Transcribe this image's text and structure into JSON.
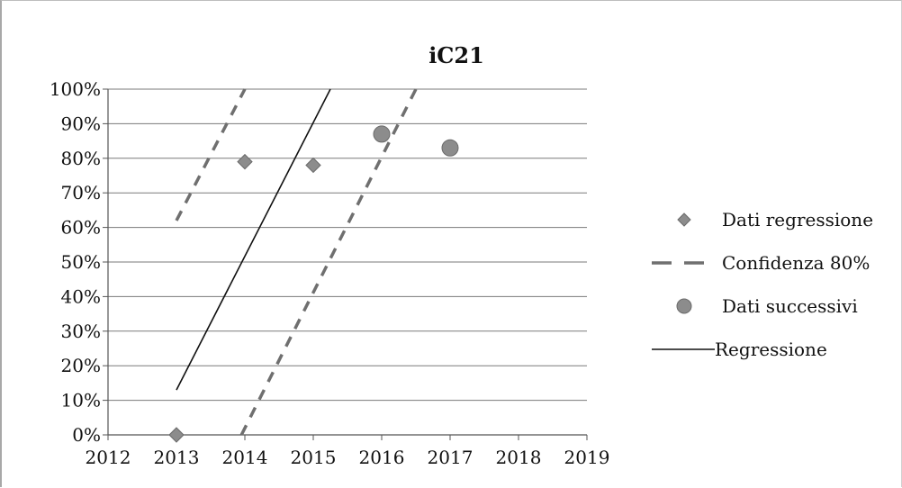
{
  "chart_data": {
    "type": "scatter",
    "title": "iC21",
    "xlabel": "",
    "ylabel": "",
    "xlim": [
      2012,
      2019
    ],
    "ylim": [
      0,
      1
    ],
    "x_ticks": [
      "2012",
      "2013",
      "2014",
      "2015",
      "2016",
      "2017",
      "2018",
      "2019"
    ],
    "y_ticks": [
      "0%",
      "10%",
      "20%",
      "30%",
      "40%",
      "50%",
      "60%",
      "70%",
      "80%",
      "90%",
      "100%"
    ],
    "grid": true,
    "legend_position": "right",
    "series": [
      {
        "name": "Dati regressione",
        "kind": "diamond",
        "color": "#8c8c8c",
        "points": [
          {
            "x": 2013,
            "y": 0.0
          },
          {
            "x": 2014,
            "y": 0.79
          },
          {
            "x": 2015,
            "y": 0.78
          }
        ]
      },
      {
        "name": "Confidenza 80%",
        "kind": "dashed-line",
        "color": "#6f6f6f",
        "lines": [
          [
            {
              "x": 2013,
              "y": 0.62
            },
            {
              "x": 2014,
              "y": 1.0
            }
          ],
          [
            {
              "x": 2013.95,
              "y": 0.0
            },
            {
              "x": 2016.5,
              "y": 1.0
            }
          ]
        ]
      },
      {
        "name": "Dati successivi",
        "kind": "circle",
        "color": "#8c8c8c",
        "points": [
          {
            "x": 2016,
            "y": 0.87
          },
          {
            "x": 2017,
            "y": 0.83
          }
        ]
      },
      {
        "name": "Regressione",
        "kind": "solid-line",
        "color": "#111111",
        "lines": [
          [
            {
              "x": 2013,
              "y": 0.13
            },
            {
              "x": 2015.25,
              "y": 1.0
            }
          ]
        ]
      }
    ]
  }
}
